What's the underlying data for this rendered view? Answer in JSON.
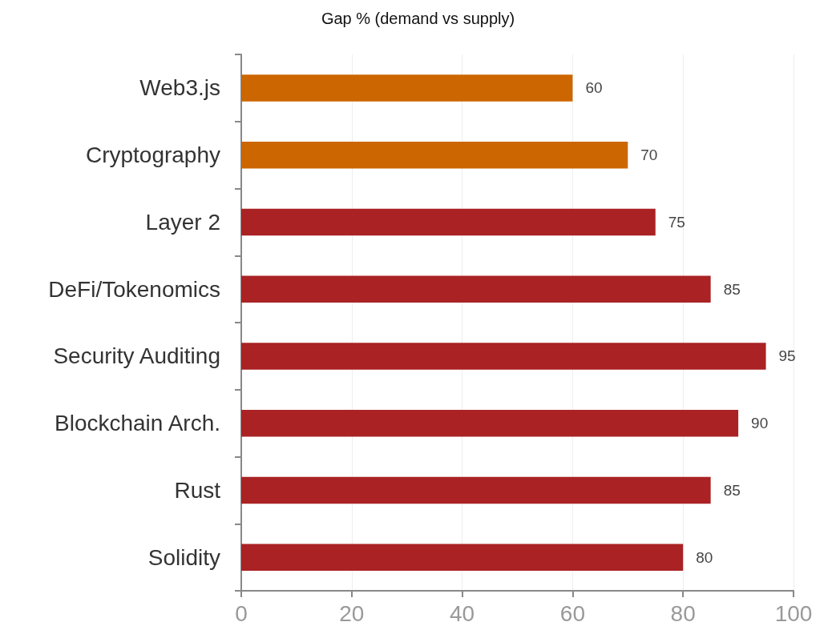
{
  "chart_data": {
    "type": "bar",
    "orientation": "horizontal",
    "title": "Gap % (demand vs supply)",
    "categories": [
      "Web3.js",
      "Cryptography",
      "Layer 2",
      "DeFi/Tokenomics",
      "Security Auditing",
      "Blockchain Arch.",
      "Rust",
      "Solidity"
    ],
    "values": [
      60,
      70,
      75,
      85,
      95,
      90,
      85,
      80
    ],
    "colors": [
      "#cc6600",
      "#cc6600",
      "#aa2224",
      "#aa2224",
      "#aa2224",
      "#aa2224",
      "#aa2224",
      "#aa2224"
    ],
    "xlim": [
      0,
      100
    ],
    "xticks": [
      0,
      20,
      40,
      60,
      80,
      100
    ],
    "grid": "x",
    "data_labels": true
  }
}
